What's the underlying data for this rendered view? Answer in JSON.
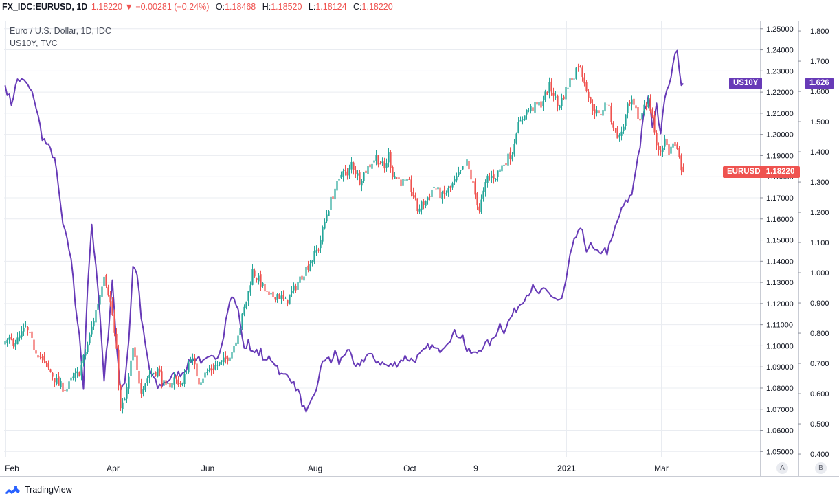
{
  "header": {
    "symbol": "FX_IDC:EURUSD, 1D",
    "last": "1.18220",
    "arrow": "▼",
    "change": "−0.00281 (−0.24%)",
    "o_label": "O:",
    "o_value": "1.18468",
    "h_label": "H:",
    "h_value": "1.18520",
    "l_label": "L:",
    "l_value": "1.18124",
    "c_label": "C:",
    "c_value": "1.18220"
  },
  "legend": {
    "main_series": "Euro / U.S. Dollar, 1D, IDC",
    "compare_series": "US10Y, TVC"
  },
  "price_tags": {
    "us10y_name": "US10Y",
    "us10y_value": "1.626",
    "eurusd_name": "EURUSD",
    "eurusd_value": "1.18220"
  },
  "scale_buttons": {
    "a": "A",
    "b": "B"
  },
  "footer": {
    "brand": "TradingView"
  },
  "colors": {
    "up": "#26a69a",
    "down": "#ef5350",
    "us10y": "#673ab7",
    "grid": "#e9ecf1",
    "text": "#131722"
  },
  "chart_data": [
    {
      "type": "candlestick",
      "series_name": "Euro / U.S. Dollar, 1D, IDC",
      "x_ticks": [
        "Feb",
        "Apr",
        "Jun",
        "Aug",
        "Oct",
        "9",
        "2021",
        "Mar"
      ],
      "y_ticks": [
        "1.25000",
        "1.24000",
        "1.23000",
        "1.22000",
        "1.21000",
        "1.20000",
        "1.19000",
        "1.18000",
        "1.17000",
        "1.16000",
        "1.15000",
        "1.14000",
        "1.13000",
        "1.12000",
        "1.11000",
        "1.10000",
        "1.09000",
        "1.08000",
        "1.07000",
        "1.06000",
        "1.05000"
      ],
      "ylim": [
        1.0475,
        1.2535
      ],
      "last_value": 1.1822,
      "anchors": [
        [
          0,
          1.1015
        ],
        [
          6,
          1.1025
        ],
        [
          10,
          1.1085
        ],
        [
          14,
          1.0995
        ],
        [
          20,
          1.0905
        ],
        [
          26,
          1.0815
        ],
        [
          30,
          1.0795
        ],
        [
          32,
          1.0835
        ],
        [
          36,
          1.0875
        ],
        [
          40,
          1.1005
        ],
        [
          44,
          1.1165
        ],
        [
          46,
          1.1245
        ],
        [
          48,
          1.1345
        ],
        [
          50,
          1.1255
        ],
        [
          52,
          1.1145
        ],
        [
          54,
          1.0965
        ],
        [
          56,
          1.0695
        ],
        [
          58,
          1.0745
        ],
        [
          60,
          1.0845
        ],
        [
          62,
          1.0985
        ],
        [
          64,
          1.0875
        ],
        [
          66,
          1.0795
        ],
        [
          70,
          1.0865
        ],
        [
          74,
          1.0885
        ],
        [
          78,
          1.0795
        ],
        [
          82,
          1.0845
        ],
        [
          86,
          1.0815
        ],
        [
          90,
          1.0955
        ],
        [
          94,
          1.0835
        ],
        [
          98,
          1.0875
        ],
        [
          102,
          1.0905
        ],
        [
          106,
          1.0925
        ],
        [
          110,
          1.0975
        ],
        [
          114,
          1.1095
        ],
        [
          118,
          1.1255
        ],
        [
          120,
          1.1355
        ],
        [
          124,
          1.1295
        ],
        [
          128,
          1.1225
        ],
        [
          132,
          1.1245
        ],
        [
          136,
          1.1205
        ],
        [
          140,
          1.1265
        ],
        [
          144,
          1.1335
        ],
        [
          148,
          1.1395
        ],
        [
          152,
          1.1465
        ],
        [
          156,
          1.1625
        ],
        [
          160,
          1.1745
        ],
        [
          162,
          1.1775
        ],
        [
          164,
          1.1845
        ],
        [
          166,
          1.1795
        ],
        [
          168,
          1.1865
        ],
        [
          172,
          1.1785
        ],
        [
          176,
          1.1845
        ],
        [
          180,
          1.1895
        ],
        [
          184,
          1.1835
        ],
        [
          186,
          1.1905
        ],
        [
          188,
          1.1815
        ],
        [
          192,
          1.1775
        ],
        [
          196,
          1.1765
        ],
        [
          198,
          1.1715
        ],
        [
          200,
          1.1645
        ],
        [
          204,
          1.1685
        ],
        [
          208,
          1.1755
        ],
        [
          212,
          1.1705
        ],
        [
          216,
          1.1745
        ],
        [
          220,
          1.1805
        ],
        [
          224,
          1.1865
        ],
        [
          226,
          1.1795
        ],
        [
          228,
          1.1715
        ],
        [
          230,
          1.1645
        ],
        [
          234,
          1.1795
        ],
        [
          238,
          1.1805
        ],
        [
          242,
          1.1865
        ],
        [
          246,
          1.1915
        ],
        [
          248,
          1.2025
        ],
        [
          250,
          1.2055
        ],
        [
          252,
          1.2105
        ],
        [
          256,
          1.2125
        ],
        [
          260,
          1.2145
        ],
        [
          264,
          1.2225
        ],
        [
          266,
          1.2195
        ],
        [
          268,
          1.2135
        ],
        [
          270,
          1.2165
        ],
        [
          274,
          1.2255
        ],
        [
          276,
          1.2285
        ],
        [
          278,
          1.2335
        ],
        [
          280,
          1.2285
        ],
        [
          282,
          1.2225
        ],
        [
          284,
          1.2135
        ],
        [
          286,
          1.2115
        ],
        [
          288,
          1.2085
        ],
        [
          290,
          1.2125
        ],
        [
          292,
          1.2155
        ],
        [
          294,
          1.2075
        ],
        [
          296,
          1.2015
        ],
        [
          298,
          1.1985
        ],
        [
          300,
          1.2045
        ],
        [
          302,
          1.2125
        ],
        [
          304,
          1.2145
        ],
        [
          306,
          1.2105
        ],
        [
          308,
          1.2065
        ],
        [
          310,
          1.2145
        ],
        [
          312,
          1.2155
        ],
        [
          314,
          1.2085
        ],
        [
          316,
          1.1935
        ],
        [
          318,
          1.1925
        ],
        [
          320,
          1.1975
        ],
        [
          322,
          1.1915
        ],
        [
          324,
          1.1955
        ],
        [
          326,
          1.1915
        ],
        [
          328,
          1.1845
        ],
        [
          329,
          1.1822
        ]
      ]
    },
    {
      "type": "line",
      "series_name": "US10Y, TVC",
      "y_ticks": [
        "1.800",
        "1.700",
        "1.600",
        "1.500",
        "1.400",
        "1.300",
        "1.200",
        "1.100",
        "1.000",
        "0.900",
        "0.800",
        "0.700",
        "0.600",
        "0.500",
        "0.400"
      ],
      "ylim": [
        0.391,
        1.832
      ],
      "last_value": 1.626,
      "anchors": [
        [
          0,
          1.62
        ],
        [
          3,
          1.56
        ],
        [
          6,
          1.64
        ],
        [
          10,
          1.63
        ],
        [
          14,
          1.58
        ],
        [
          18,
          1.45
        ],
        [
          24,
          1.38
        ],
        [
          28,
          1.16
        ],
        [
          32,
          1.05
        ],
        [
          34,
          0.9
        ],
        [
          36,
          0.8
        ],
        [
          38,
          0.62
        ],
        [
          40,
          0.95
        ],
        [
          42,
          1.15
        ],
        [
          44,
          1.03
        ],
        [
          46,
          0.86
        ],
        [
          48,
          0.65
        ],
        [
          50,
          0.8
        ],
        [
          52,
          0.98
        ],
        [
          54,
          0.75
        ],
        [
          56,
          0.62
        ],
        [
          58,
          0.64
        ],
        [
          60,
          0.78
        ],
        [
          62,
          1.02
        ],
        [
          64,
          1.0
        ],
        [
          66,
          0.85
        ],
        [
          68,
          0.76
        ],
        [
          70,
          0.68
        ],
        [
          74,
          0.62
        ],
        [
          78,
          0.64
        ],
        [
          82,
          0.66
        ],
        [
          86,
          0.67
        ],
        [
          90,
          0.71
        ],
        [
          94,
          0.72
        ],
        [
          96,
          0.7
        ],
        [
          98,
          0.71
        ],
        [
          102,
          0.72
        ],
        [
          104,
          0.74
        ],
        [
          106,
          0.8
        ],
        [
          108,
          0.88
        ],
        [
          110,
          0.92
        ],
        [
          112,
          0.9
        ],
        [
          114,
          0.84
        ],
        [
          116,
          0.74
        ],
        [
          118,
          0.78
        ],
        [
          120,
          0.73
        ],
        [
          124,
          0.74
        ],
        [
          126,
          0.7
        ],
        [
          128,
          0.72
        ],
        [
          130,
          0.71
        ],
        [
          132,
          0.69
        ],
        [
          134,
          0.66
        ],
        [
          138,
          0.66
        ],
        [
          140,
          0.63
        ],
        [
          142,
          0.61
        ],
        [
          144,
          0.57
        ],
        [
          146,
          0.53
        ],
        [
          148,
          0.56
        ],
        [
          150,
          0.6
        ],
        [
          152,
          0.64
        ],
        [
          154,
          0.71
        ],
        [
          156,
          0.72
        ],
        [
          158,
          0.7
        ],
        [
          160,
          0.74
        ],
        [
          162,
          0.7
        ],
        [
          166,
          0.75
        ],
        [
          170,
          0.68
        ],
        [
          172,
          0.7
        ],
        [
          176,
          0.73
        ],
        [
          180,
          0.71
        ],
        [
          186,
          0.69
        ],
        [
          190,
          0.7
        ],
        [
          194,
          0.72
        ],
        [
          198,
          0.71
        ],
        [
          202,
          0.73
        ],
        [
          206,
          0.76
        ],
        [
          210,
          0.74
        ],
        [
          214,
          0.77
        ],
        [
          218,
          0.8
        ],
        [
          222,
          0.79
        ],
        [
          224,
          0.74
        ],
        [
          228,
          0.73
        ],
        [
          232,
          0.76
        ],
        [
          236,
          0.77
        ],
        [
          240,
          0.83
        ],
        [
          242,
          0.81
        ],
        [
          246,
          0.86
        ],
        [
          250,
          0.9
        ],
        [
          252,
          0.92
        ],
        [
          256,
          0.95
        ],
        [
          258,
          0.93
        ],
        [
          262,
          0.94
        ],
        [
          266,
          0.92
        ],
        [
          268,
          0.91
        ],
        [
          270,
          0.91
        ],
        [
          272,
          0.97
        ],
        [
          274,
          1.05
        ],
        [
          276,
          1.1
        ],
        [
          278,
          1.14
        ],
        [
          280,
          1.13
        ],
        [
          282,
          1.08
        ],
        [
          284,
          1.09
        ],
        [
          286,
          1.07
        ],
        [
          288,
          1.06
        ],
        [
          290,
          1.08
        ],
        [
          292,
          1.07
        ],
        [
          294,
          1.1
        ],
        [
          296,
          1.15
        ],
        [
          298,
          1.19
        ],
        [
          300,
          1.22
        ],
        [
          302,
          1.24
        ],
        [
          304,
          1.26
        ],
        [
          306,
          1.35
        ],
        [
          308,
          1.42
        ],
        [
          310,
          1.53
        ],
        [
          312,
          1.58
        ],
        [
          314,
          1.49
        ],
        [
          316,
          1.55
        ],
        [
          318,
          1.47
        ],
        [
          320,
          1.59
        ],
        [
          322,
          1.61
        ],
        [
          324,
          1.7
        ],
        [
          326,
          1.73
        ],
        [
          328,
          1.63
        ],
        [
          329,
          1.626
        ]
      ]
    }
  ]
}
